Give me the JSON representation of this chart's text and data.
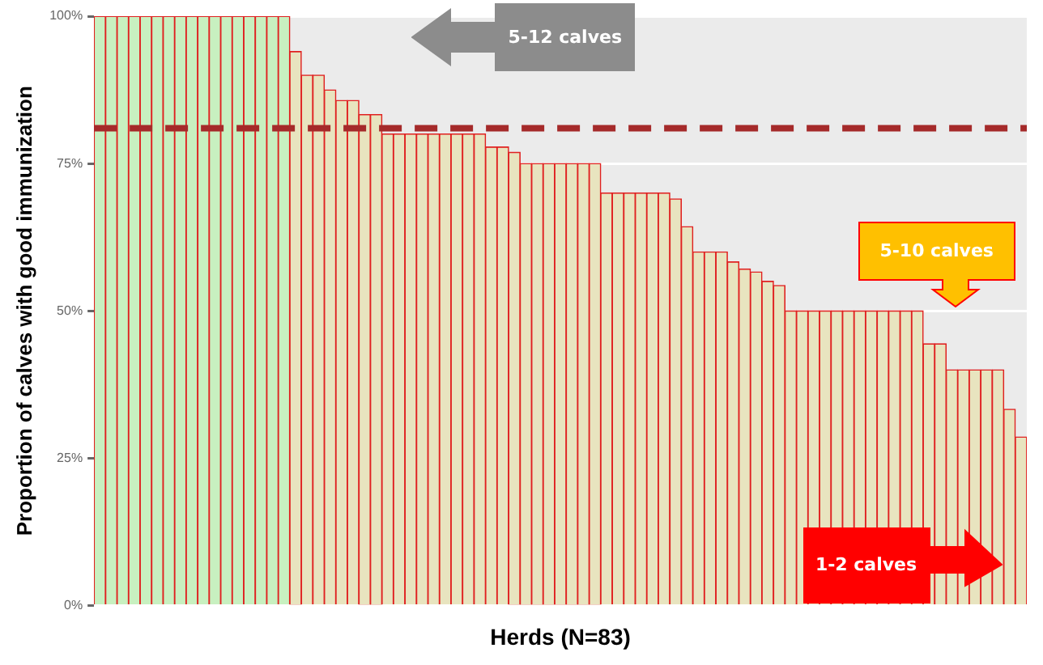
{
  "chart_data": {
    "type": "bar",
    "xlabel": "Herds (N=83)",
    "ylabel": "Proportion of calves with good immunization",
    "categories": [
      null,
      null,
      null,
      null,
      null,
      null,
      null,
      null,
      null,
      null,
      null,
      null,
      null,
      null,
      null,
      null,
      null,
      null,
      null,
      null,
      null,
      null,
      null,
      null,
      null,
      null,
      null,
      null,
      null,
      null,
      null,
      null,
      null,
      null,
      null,
      null,
      null,
      null,
      null,
      null,
      null,
      null,
      null,
      null,
      null,
      null,
      null,
      null,
      null,
      null,
      null,
      null,
      null,
      null,
      null,
      null,
      null,
      null,
      null,
      null,
      null,
      null,
      null,
      null,
      null,
      null,
      null,
      null,
      null,
      null,
      null,
      null,
      null,
      null,
      null,
      null,
      null,
      null,
      null,
      null,
      null
    ],
    "values": [
      100,
      100,
      100,
      100,
      100,
      100,
      100,
      100,
      100,
      100,
      100,
      100,
      100,
      100,
      100,
      100,
      100,
      94,
      90,
      90,
      87.5,
      85.7,
      85.7,
      83.3,
      83.3,
      80,
      80,
      80,
      80,
      80,
      80,
      80,
      80,
      80,
      77.8,
      77.8,
      76.9,
      75,
      75,
      75,
      75,
      75,
      75,
      75,
      70,
      70,
      70,
      70,
      70,
      70,
      69,
      64.3,
      60,
      60,
      60,
      58.3,
      57.1,
      56.6,
      55,
      54.3,
      50,
      50,
      50,
      50,
      50,
      50,
      50,
      50,
      50,
      50,
      50,
      50,
      44.4,
      44.4,
      40,
      40,
      40,
      40,
      40,
      33.3,
      28.6
    ],
    "colors": [
      "#c8f0c0",
      "#c8f0c0",
      "#c8f0c0",
      "#c8f0c0",
      "#c8f0c0",
      "#c8f0c0",
      "#c8f0c0",
      "#c8f0c0",
      "#c8f0c0",
      "#c8f0c0",
      "#c8f0c0",
      "#c8f0c0",
      "#c8f0c0",
      "#c8f0c0",
      "#c8f0c0",
      "#c8f0c0",
      "#c8f0c0",
      "#e8e4bf",
      "#e8e4bf",
      "#e8e4bf",
      "#e8e4bf",
      "#e8e4bf",
      "#e8e4bf",
      "#e8e4bf",
      "#e8e4bf",
      "#e8e4bf",
      "#e8e4bf",
      "#e8e4bf",
      "#e8e4bf",
      "#e8e4bf",
      "#e8e4bf",
      "#e8e4bf",
      "#e8e4bf",
      "#e8e4bf",
      "#e8e4bf",
      "#e8e4bf",
      "#e8e4bf",
      "#e8e4bf",
      "#e8e4bf",
      "#e8e4bf",
      "#e8e4bf",
      "#e8e4bf",
      "#e8e4bf",
      "#e8e4bf",
      "#e8e4bf",
      "#e8e4bf",
      "#e8e4bf",
      "#e8e4bf",
      "#e8e4bf",
      "#e8e4bf",
      "#e8e4bf",
      "#e8e4bf",
      "#e8e4bf",
      "#e8e4bf",
      "#e8e4bf",
      "#e8e4bf",
      "#e8e4bf",
      "#e8e4bf",
      "#e8e4bf",
      "#e8e4bf",
      "#e8e4bf",
      "#e8e4bf",
      "#e8e4bf",
      "#e8e4bf",
      "#e8e4bf",
      "#e8e4bf",
      "#e8e4bf",
      "#e8e4bf",
      "#e8e4bf",
      "#e8e4bf",
      "#e8e4bf",
      "#e8e4bf",
      "#e8e4bf",
      "#e8e4bf",
      "#e8e4bf",
      "#e8e4bf",
      "#e8e4bf",
      "#e8e4bf",
      "#e8e4bf",
      "#e8e4bf",
      "#e8e4bf"
    ],
    "ylim": [
      0,
      100
    ],
    "yticks": [
      {
        "value": 0,
        "label": "0%"
      },
      {
        "value": 25,
        "label": "25%"
      },
      {
        "value": 50,
        "label": "50%"
      },
      {
        "value": 75,
        "label": "75%"
      },
      {
        "value": 100,
        "label": "100%"
      }
    ],
    "grid": "y",
    "ref_lines": [
      {
        "axis": "y",
        "value": 81,
        "color": "#a52a2a",
        "line_style": "dashed"
      }
    ],
    "annotations": [
      "5-12 calves",
      "5-10 calves",
      "1-2 calves"
    ]
  }
}
